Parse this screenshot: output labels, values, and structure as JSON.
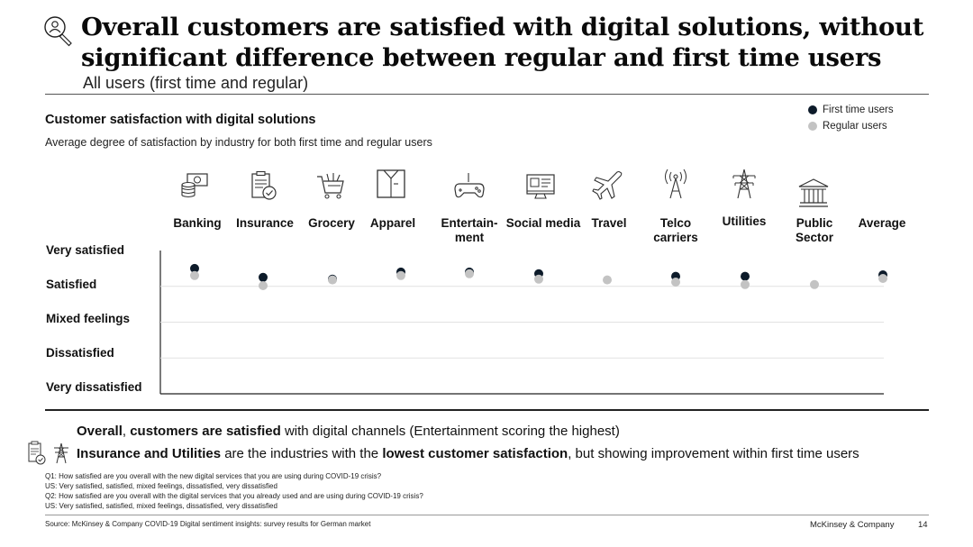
{
  "header": {
    "title": "Overall customers are satisfied with digital solutions, without significant difference between regular and first time users",
    "subtitle": "All users (first time and regular)",
    "icon": "magnifier-person-icon"
  },
  "chart_data": {
    "type": "scatter",
    "title": "Customer satisfaction with digital solutions",
    "subtitle": "Average degree of satisfaction by industry for both first time and regular users",
    "categories": [
      "Banking",
      "Insurance",
      "Grocery",
      "Apparel",
      "Entertain-ment",
      "Social media",
      "Travel",
      "Telco carriers",
      "Utilities",
      "Public Sector",
      "Average"
    ],
    "category_lines": [
      [
        "Banking"
      ],
      [
        "Insurance"
      ],
      [
        "Grocery"
      ],
      [
        "Apparel"
      ],
      [
        "Entertain-",
        "ment"
      ],
      [
        "Social media"
      ],
      [
        "Travel"
      ],
      [
        "Telco",
        "carriers"
      ],
      [
        "Utilities"
      ],
      [
        "Public",
        "Sector"
      ],
      [
        "Average"
      ]
    ],
    "category_icons": [
      "coins-icon",
      "insurance-clipboard-icon",
      "grocery-cart-icon",
      "apparel-shirt-box-icon",
      "gamepad-icon",
      "social-media-monitor-icon",
      "airplane-icon",
      "antenna-tower-icon",
      "power-pylon-icon",
      "public-building-icon",
      "none"
    ],
    "y_scale": [
      "Very dissatisfied",
      "Dissatisfied",
      "Mixed feelings",
      "Satisfied",
      "Very satisfied"
    ],
    "ylim": [
      1,
      5
    ],
    "series": [
      {
        "name": "First time users",
        "color": "#0d1b2a",
        "values": [
          4.5,
          4.25,
          4.2,
          4.4,
          4.4,
          4.35,
          null,
          4.28,
          4.28,
          null,
          4.32
        ]
      },
      {
        "name": "Regular users",
        "color": "#c3c3c3",
        "values": [
          4.3,
          4.02,
          4.18,
          4.3,
          4.35,
          4.2,
          4.18,
          4.12,
          4.05,
          4.05,
          4.22
        ]
      }
    ],
    "legend": "top-right",
    "grid": true
  },
  "takeaways": {
    "line1": {
      "b1": "Overall",
      "t1": ", ",
      "b2": "customers are satisfied",
      "t2": " with digital channels (Entertainment scoring the highest)"
    },
    "line2": {
      "b1": "Insurance and Utilities",
      "t1": " are the industries with the ",
      "b2": "lowest customer satisfaction",
      "t2": ", but showing improvement within first time users"
    },
    "icons": [
      "insurance-clipboard-icon",
      "power-pylon-icon"
    ]
  },
  "footnotes": [
    "Q1: How satisfied are you overall with the new digital services that you are using during COVID-19 crisis?",
    "US: Very satisfied, satisfied, mixed feelings, dissatisfied, very dissatisfied",
    "Q2: How satisfied are you overall with the digital services that you already used and are using during COVID-19 crisis?",
    "US: Very satisfied, satisfied, mixed feelings, dissatisfied, very dissatisfied"
  ],
  "footer": {
    "source": "Source: McKinsey & Company COVID-19 Digital sentiment insights: survey results for German market",
    "brand": "McKinsey & Company",
    "page": "14"
  }
}
